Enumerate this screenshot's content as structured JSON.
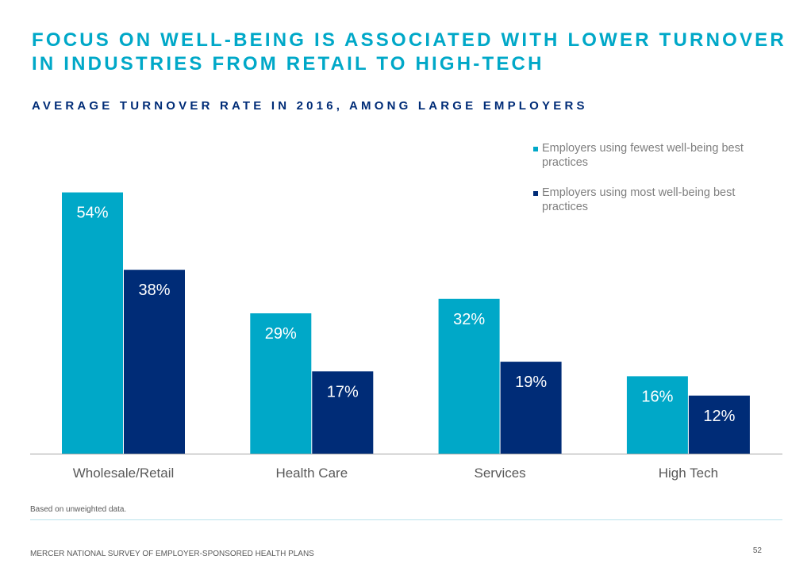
{
  "title": "FOCUS ON WELL-BEING IS ASSOCIATED WITH LOWER TURNOVER IN INDUSTRIES FROM RETAIL TO HIGH-TECH",
  "subtitle": "AVERAGE TURNOVER RATE IN 2016, AMONG LARGE EMPLOYERS",
  "note": "Based on unweighted data.",
  "footer": "MERCER NATIONAL SURVEY OF EMPLOYER-SPONSORED HEALTH PLANS",
  "page_number": "52",
  "chart_data": {
    "type": "bar",
    "categories": [
      "Wholesale/Retail",
      "Health Care",
      "Services",
      "High Tech"
    ],
    "series": [
      {
        "name": "Employers using fewest well-being best practices",
        "values": [
          54,
          29,
          32,
          16
        ],
        "labels": [
          "54%",
          "29%",
          "32%",
          "16%"
        ],
        "color": "#00a8c8"
      },
      {
        "name": "Employers using most well-being best practices",
        "values": [
          38,
          17,
          19,
          12
        ],
        "labels": [
          "38%",
          "17%",
          "19%",
          "12%"
        ],
        "color": "#002c77"
      }
    ],
    "unit": "%",
    "ylim": [
      0,
      54
    ],
    "grid": false,
    "legend_position": "top-right"
  }
}
